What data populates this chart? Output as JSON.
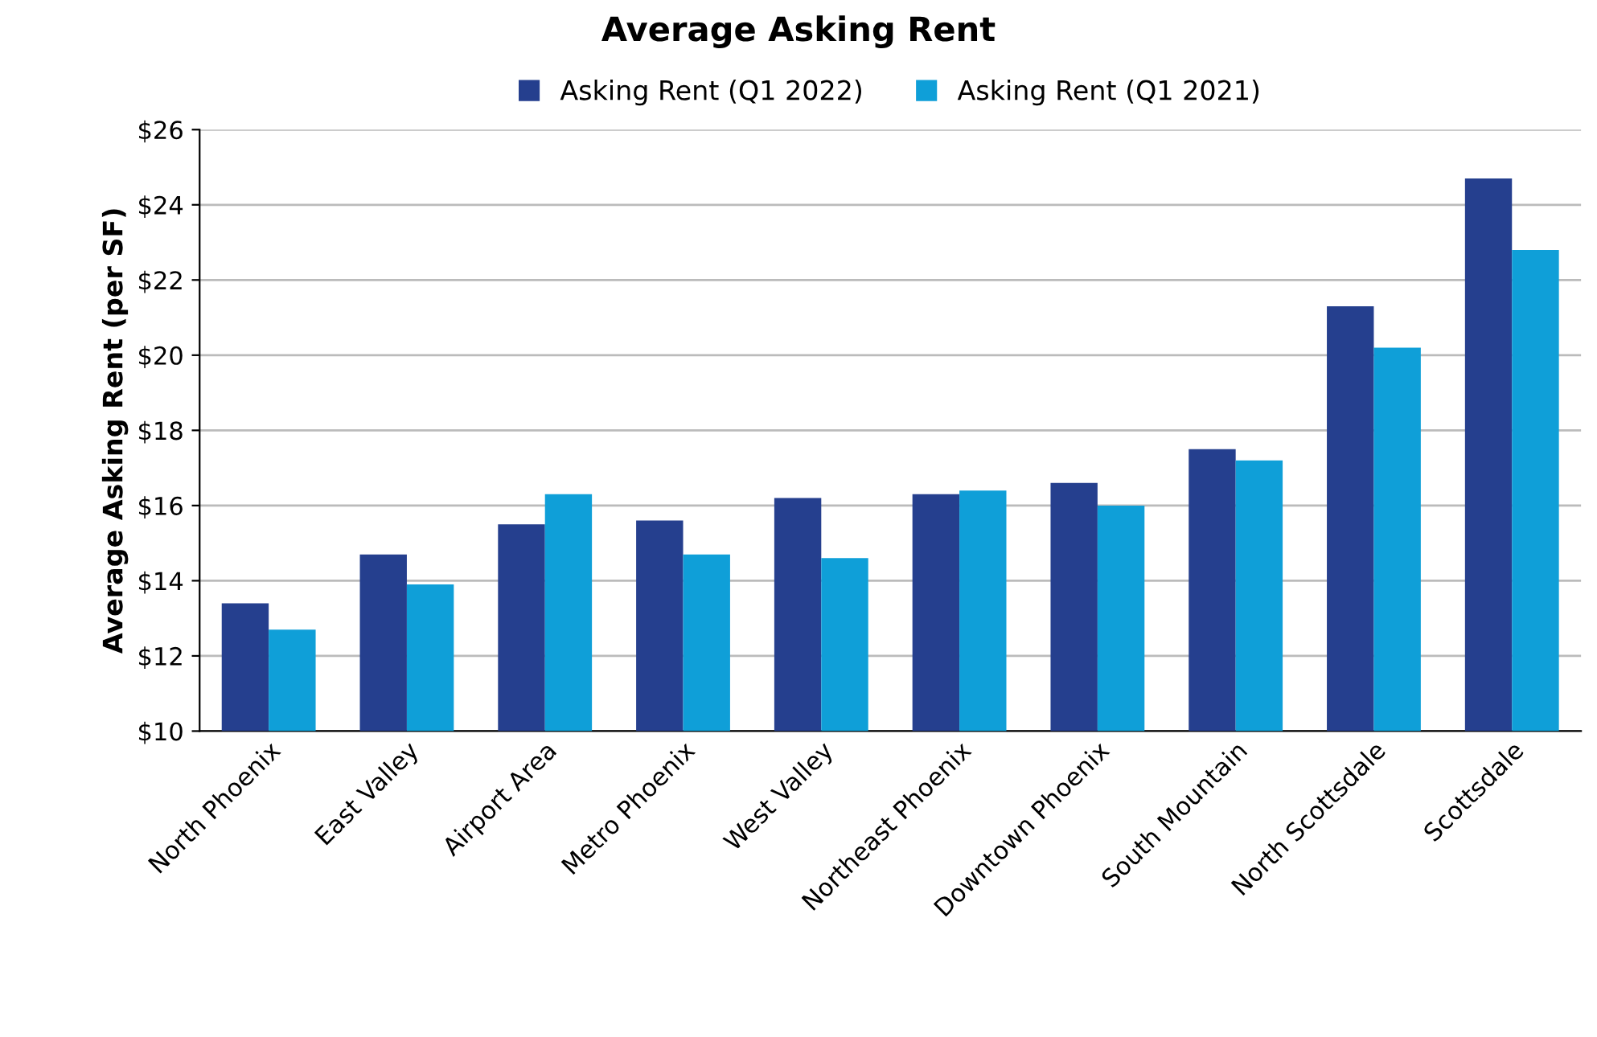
{
  "chart_data": {
    "type": "bar",
    "title": "Average Asking Rent",
    "ylabel": "Average Asking Rent (per SF)",
    "categories": [
      "North Phoenix",
      "East Valley",
      "Airport Area",
      "Metro Phoenix",
      "West Valley",
      "Northeast Phoenix",
      "Downtown Phoenix",
      "South Mountain",
      "North Scottsdale",
      "Scottsdale"
    ],
    "series": [
      {
        "name": "Asking Rent (Q1 2022)",
        "color": "#253f8e",
        "values": [
          13.4,
          14.7,
          15.5,
          15.6,
          16.2,
          16.3,
          16.6,
          17.5,
          21.3,
          24.7
        ]
      },
      {
        "name": "Asking Rent (Q1 2021)",
        "color": "#0f9fd8",
        "values": [
          12.7,
          13.9,
          16.3,
          14.7,
          14.6,
          16.4,
          16.0,
          17.2,
          20.2,
          22.8
        ]
      }
    ],
    "ylim": [
      10,
      26
    ],
    "yticks": [
      {
        "value": 10,
        "label": "$10"
      },
      {
        "value": 12,
        "label": "$12"
      },
      {
        "value": 14,
        "label": "$14"
      },
      {
        "value": 16,
        "label": "$16"
      },
      {
        "value": 18,
        "label": "$18"
      },
      {
        "value": 20,
        "label": "$20"
      },
      {
        "value": 22,
        "label": "$22"
      },
      {
        "value": 24,
        "label": "$24"
      },
      {
        "value": 26,
        "label": "$26"
      }
    ],
    "grid": "y",
    "legend": "top"
  }
}
